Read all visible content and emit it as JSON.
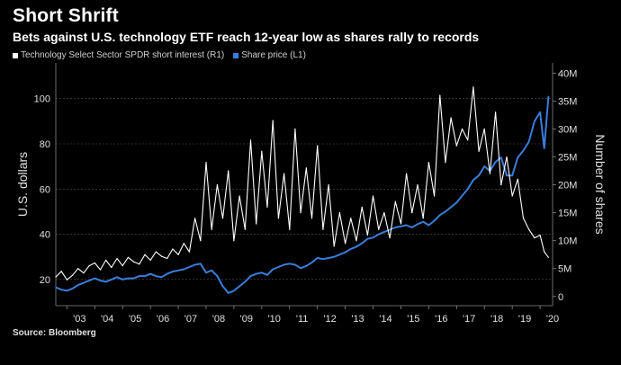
{
  "title": "Short Shrift",
  "subtitle": "Bets against U.S. technology ETF reach 12-year low as shares rally to records",
  "source": "Source: Bloomberg",
  "colors": {
    "short_interest": "#ffffff",
    "share_price": "#3a7ddb",
    "background": "#000000",
    "grid": "#555555"
  },
  "chart_data": {
    "type": "line",
    "title": "Short Shrift",
    "subtitle": "Bets against U.S. technology ETF reach 12-year low as shares rally to records",
    "x_ticks": [
      "'03",
      "'04",
      "'05",
      "'06",
      "'07",
      "'08",
      "'09",
      "'10",
      "'11",
      "'12",
      "'13",
      "'14",
      "'15",
      "'16",
      "'17",
      "'18",
      "'19",
      "'20"
    ],
    "xlim": [
      2002.6,
      2020.45
    ],
    "left_axis": {
      "label": "U.S. dollars",
      "ticks": [
        "20",
        "40",
        "60",
        "80",
        "100"
      ],
      "tick_values": [
        20,
        40,
        60,
        80,
        100
      ],
      "ylim": [
        10,
        115
      ]
    },
    "right_axis": {
      "label": "Number of shares",
      "ticks": [
        "0",
        "5M",
        "10M",
        "15M",
        "20M",
        "25M",
        "30M",
        "35M",
        "40M"
      ],
      "tick_values": [
        0,
        5,
        10,
        15,
        20,
        25,
        30,
        35,
        40
      ],
      "ylim": [
        -1,
        41.5
      ],
      "unit": "millions"
    },
    "series": [
      {
        "name": "Technology Select Sector SPDR short interest (R1)",
        "axis": "right",
        "color": "#ffffff",
        "x": [
          2002.6,
          2002.8,
          2003.0,
          2003.2,
          2003.4,
          2003.6,
          2003.8,
          2004.0,
          2004.2,
          2004.4,
          2004.6,
          2004.8,
          2005.0,
          2005.2,
          2005.4,
          2005.6,
          2005.8,
          2006.0,
          2006.2,
          2006.4,
          2006.6,
          2006.8,
          2007.0,
          2007.2,
          2007.4,
          2007.6,
          2007.8,
          2008.0,
          2008.2,
          2008.4,
          2008.6,
          2008.8,
          2009.0,
          2009.2,
          2009.4,
          2009.6,
          2009.8,
          2010.0,
          2010.2,
          2010.4,
          2010.6,
          2010.8,
          2011.0,
          2011.2,
          2011.4,
          2011.6,
          2011.8,
          2012.0,
          2012.2,
          2012.4,
          2012.6,
          2012.8,
          2013.0,
          2013.2,
          2013.4,
          2013.6,
          2013.8,
          2014.0,
          2014.2,
          2014.4,
          2014.6,
          2014.8,
          2015.0,
          2015.2,
          2015.4,
          2015.6,
          2015.8,
          2016.0,
          2016.2,
          2016.4,
          2016.6,
          2016.8,
          2017.0,
          2017.2,
          2017.4,
          2017.6,
          2017.8,
          2018.0,
          2018.2,
          2018.4,
          2018.6,
          2018.8,
          2019.0,
          2019.2,
          2019.4,
          2019.6,
          2019.8,
          2020.0,
          2020.15,
          2020.3
        ],
        "values": [
          3.5,
          4.5,
          3.0,
          3.8,
          5.0,
          4.2,
          5.5,
          6.0,
          4.8,
          6.5,
          5.2,
          6.8,
          5.5,
          7.0,
          6.2,
          5.8,
          7.5,
          6.5,
          8.0,
          7.2,
          6.8,
          8.5,
          7.5,
          9.5,
          8.0,
          14.0,
          10.0,
          24.0,
          12.0,
          20.0,
          14.0,
          22.5,
          10.0,
          18.0,
          12.0,
          28.0,
          13.0,
          26.0,
          16.0,
          31.5,
          14.0,
          22.0,
          12.0,
          30.0,
          15.0,
          23.0,
          14.0,
          27.0,
          12.0,
          20.0,
          9.0,
          15.0,
          9.5,
          14.0,
          10.0,
          16.0,
          11.0,
          18.0,
          12.0,
          15.0,
          10.5,
          17.0,
          13.0,
          22.0,
          15.0,
          20.0,
          14.0,
          24.0,
          18.0,
          36.0,
          24.0,
          32.0,
          27.0,
          30.0,
          28.0,
          37.5,
          26.0,
          30.0,
          22.0,
          33.0,
          20.0,
          25.0,
          18.0,
          21.0,
          14.0,
          12.0,
          10.5,
          11.0,
          8.0,
          7.0
        ]
      },
      {
        "name": "Share price (L1)",
        "axis": "left",
        "color": "#3a7ddb",
        "x": [
          2002.6,
          2002.8,
          2003.0,
          2003.2,
          2003.4,
          2003.6,
          2003.8,
          2004.0,
          2004.2,
          2004.4,
          2004.6,
          2004.8,
          2005.0,
          2005.2,
          2005.4,
          2005.6,
          2005.8,
          2006.0,
          2006.2,
          2006.4,
          2006.6,
          2006.8,
          2007.0,
          2007.2,
          2007.4,
          2007.6,
          2007.8,
          2008.0,
          2008.2,
          2008.4,
          2008.6,
          2008.8,
          2009.0,
          2009.2,
          2009.4,
          2009.6,
          2009.8,
          2010.0,
          2010.2,
          2010.4,
          2010.6,
          2010.8,
          2011.0,
          2011.2,
          2011.4,
          2011.6,
          2011.8,
          2012.0,
          2012.2,
          2012.4,
          2012.6,
          2012.8,
          2013.0,
          2013.2,
          2013.4,
          2013.6,
          2013.8,
          2014.0,
          2014.2,
          2014.4,
          2014.6,
          2014.8,
          2015.0,
          2015.2,
          2015.4,
          2015.6,
          2015.8,
          2016.0,
          2016.2,
          2016.4,
          2016.6,
          2016.8,
          2017.0,
          2017.2,
          2017.4,
          2017.6,
          2017.8,
          2018.0,
          2018.2,
          2018.4,
          2018.6,
          2018.8,
          2019.0,
          2019.2,
          2019.4,
          2019.6,
          2019.8,
          2020.0,
          2020.15,
          2020.3
        ],
        "values": [
          16.5,
          15.5,
          15.0,
          16.0,
          17.5,
          18.5,
          19.5,
          20.5,
          19.5,
          19.0,
          20.0,
          21.0,
          20.0,
          20.5,
          20.5,
          21.5,
          21.5,
          22.5,
          21.5,
          21.0,
          22.5,
          23.5,
          24.0,
          24.5,
          25.5,
          26.5,
          27.0,
          23.0,
          24.0,
          21.5,
          17.0,
          14.0,
          15.0,
          17.0,
          19.0,
          21.5,
          22.5,
          23.0,
          22.0,
          24.5,
          25.5,
          26.5,
          27.0,
          26.5,
          25.0,
          26.0,
          27.5,
          29.5,
          29.0,
          29.5,
          30.0,
          31.0,
          32.0,
          33.5,
          34.5,
          36.0,
          38.0,
          38.5,
          40.0,
          41.0,
          42.0,
          43.0,
          43.5,
          44.0,
          43.0,
          44.5,
          45.5,
          44.0,
          46.0,
          48.5,
          50.0,
          52.0,
          54.0,
          57.0,
          60.0,
          64.0,
          66.0,
          70.0,
          68.0,
          72.0,
          74.0,
          66.0,
          66.0,
          74.0,
          77.0,
          81.0,
          90.0,
          94.0,
          78.0,
          101.0
        ]
      }
    ]
  }
}
